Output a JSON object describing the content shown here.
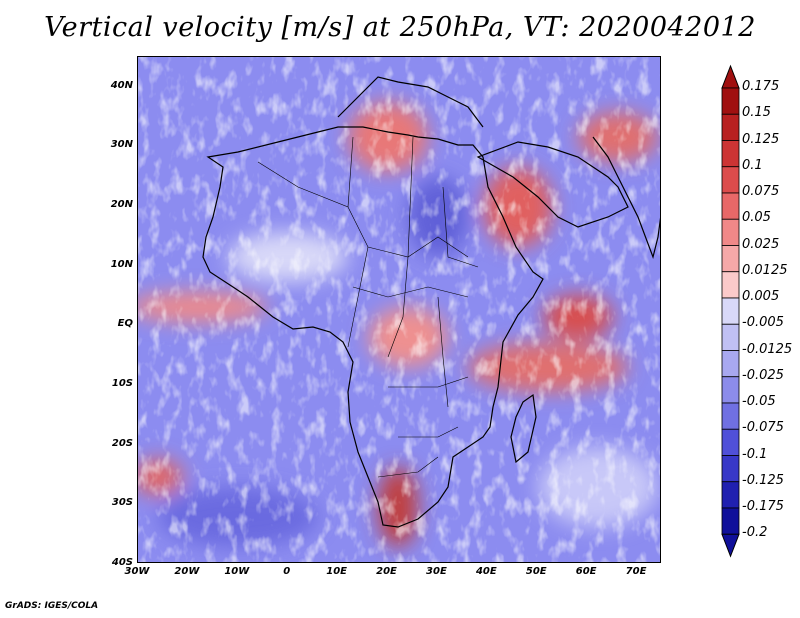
{
  "title": "Vertical velocity [m/s] at 250hPa, VT: 2020042012",
  "credit": "GrADS: IGES/COLA",
  "map": {
    "lon_range": [
      -30,
      75
    ],
    "lat_range": [
      -40,
      45
    ],
    "lat_ticks": [
      "40N",
      "30N",
      "20N",
      "10N",
      "EQ",
      "10S",
      "20S",
      "30S",
      "40S"
    ],
    "lat_values": [
      40,
      30,
      20,
      10,
      0,
      -10,
      -20,
      -30,
      -40
    ],
    "lon_ticks": [
      "30W",
      "20W",
      "10W",
      "0",
      "10E",
      "20E",
      "30E",
      "40E",
      "50E",
      "60E",
      "70E"
    ],
    "lon_values": [
      -30,
      -20,
      -10,
      0,
      10,
      20,
      30,
      40,
      50,
      60,
      70
    ],
    "coastline_color": "#000000"
  },
  "colorbar": {
    "labels": [
      "0.175",
      "0.15",
      "0.125",
      "0.1",
      "0.075",
      "0.05",
      "0.025",
      "0.0125",
      "0.005",
      "-0.005",
      "-0.0125",
      "-0.025",
      "-0.05",
      "-0.075",
      "-0.1",
      "-0.125",
      "-0.175",
      "-0.2"
    ],
    "colors": [
      "#a01010",
      "#b82020",
      "#cc3434",
      "#dc4c4c",
      "#e86868",
      "#f08888",
      "#f6a8a8",
      "#fbcaca",
      "#ffffff",
      "#d8d8f8",
      "#c0c0f4",
      "#a8a8f0",
      "#8c8cea",
      "#7070e2",
      "#5050d8",
      "#3838c8",
      "#2020b0",
      "#10109a"
    ],
    "top_triangle_color": "#a01010",
    "bottom_triangle_color": "#10109a"
  }
}
